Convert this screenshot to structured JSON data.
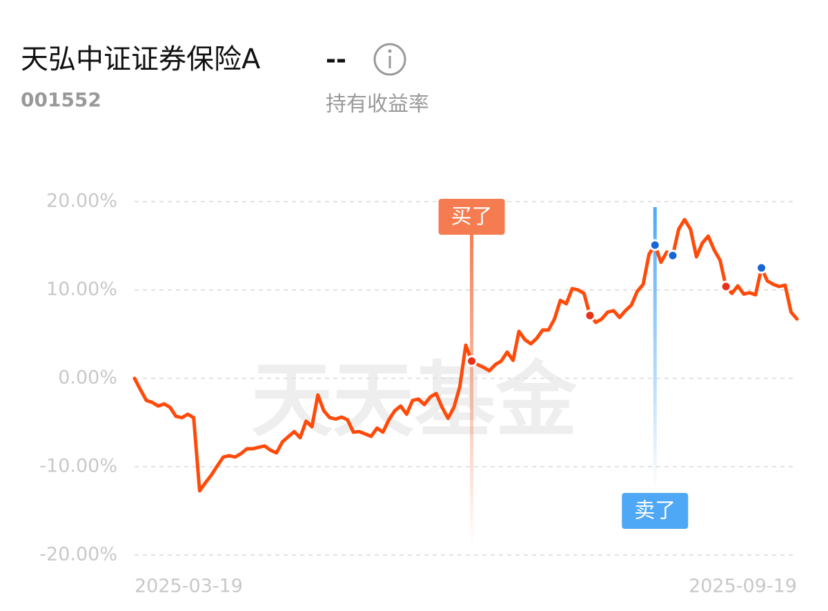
{
  "header": {
    "title": "天弘中证证券保险A",
    "value": "--",
    "code": "001552",
    "metric": "持有收益率"
  },
  "watermark": "天天基金",
  "chart_data": {
    "type": "line",
    "categories": [
      "2025-03-19",
      null,
      null,
      null,
      null,
      null,
      null,
      null,
      null,
      null,
      null,
      null,
      null,
      null,
      null,
      null,
      null,
      null,
      null,
      null,
      null,
      null,
      null,
      null,
      null,
      null,
      null,
      null,
      null,
      null,
      null,
      null,
      null,
      null,
      null,
      null,
      null,
      null,
      null,
      null,
      null,
      null,
      null,
      null,
      null,
      null,
      null,
      null,
      null,
      null,
      null,
      null,
      null,
      null,
      null,
      null,
      null,
      null,
      null,
      null,
      null,
      null,
      null,
      null,
      null,
      null,
      null,
      null,
      null,
      null,
      null,
      null,
      null,
      null,
      null,
      null,
      null,
      null,
      null,
      null,
      null,
      null,
      null,
      null,
      null,
      null,
      null,
      null,
      null,
      null,
      null,
      null,
      null,
      null,
      null,
      null,
      null,
      null,
      null,
      null,
      null,
      null,
      null,
      null,
      null,
      null,
      null,
      null,
      null,
      null,
      null,
      null,
      "2025-09-19"
    ],
    "series": [
      {
        "color": "#ff4a0a",
        "values": [
          0,
          -1.3,
          -2.5,
          -2.73,
          -3.13,
          -2.89,
          -3.28,
          -4.3,
          -4.45,
          -4.06,
          -4.45,
          -12.73,
          -11.8,
          -10.94,
          -9.9,
          -8.91,
          -8.75,
          -8.91,
          -8.52,
          -7.97,
          -7.97,
          -7.8,
          -7.66,
          -8.13,
          -8.44,
          -7.19,
          -6.6,
          -6.02,
          -6.72,
          -4.84,
          -5.47,
          -1.88,
          -3.67,
          -4.45,
          -4.61,
          -4.38,
          -4.69,
          -6.09,
          -6.02,
          -6.3,
          -6.56,
          -5.63,
          -6.09,
          -4.69,
          -3.67,
          -3.13,
          -4.06,
          -2.5,
          -2.34,
          -2.97,
          -2.11,
          -1.72,
          -3.28,
          -4.53,
          -3.28,
          -0.94,
          3.75,
          1.95,
          1.56,
          1.25,
          0.86,
          1.56,
          1.95,
          2.97,
          2.03,
          5.31,
          4.38,
          3.91,
          4.53,
          5.47,
          5.47,
          6.72,
          8.83,
          8.44,
          10.16,
          10.0,
          9.61,
          7.11,
          6.33,
          6.72,
          7.5,
          7.66,
          6.88,
          7.66,
          8.28,
          9.84,
          10.63,
          14.06,
          15.08,
          13.13,
          14.3,
          13.9,
          16.88,
          17.97,
          16.88,
          13.75,
          15.31,
          16.09,
          14.53,
          13.36,
          10.39,
          9.61,
          10.47,
          9.53,
          9.69,
          9.45,
          12.5,
          11.02,
          10.63,
          10.39,
          10.55,
          7.5,
          6.72
        ]
      }
    ],
    "ylim": [
      -20,
      20
    ],
    "yticks": [
      {
        "value": -20,
        "label": "-20.00%"
      },
      {
        "value": -10,
        "label": "-10.00%"
      },
      {
        "value": 0,
        "label": "0.00%"
      },
      {
        "value": 10,
        "label": "10.00%"
      },
      {
        "value": 20,
        "label": "20.00%"
      }
    ],
    "grid": true,
    "annotations": [
      {
        "label": "买了",
        "index": 57,
        "color": "#f47c50"
      },
      {
        "label": "卖了",
        "index": 88,
        "color": "#4ea8f5"
      }
    ],
    "buy_points": {
      "color": "#e8311a",
      "indices": [
        57,
        77,
        100
      ]
    },
    "sell_points": {
      "color": "#1766d6",
      "indices": [
        88,
        91,
        106
      ]
    }
  }
}
